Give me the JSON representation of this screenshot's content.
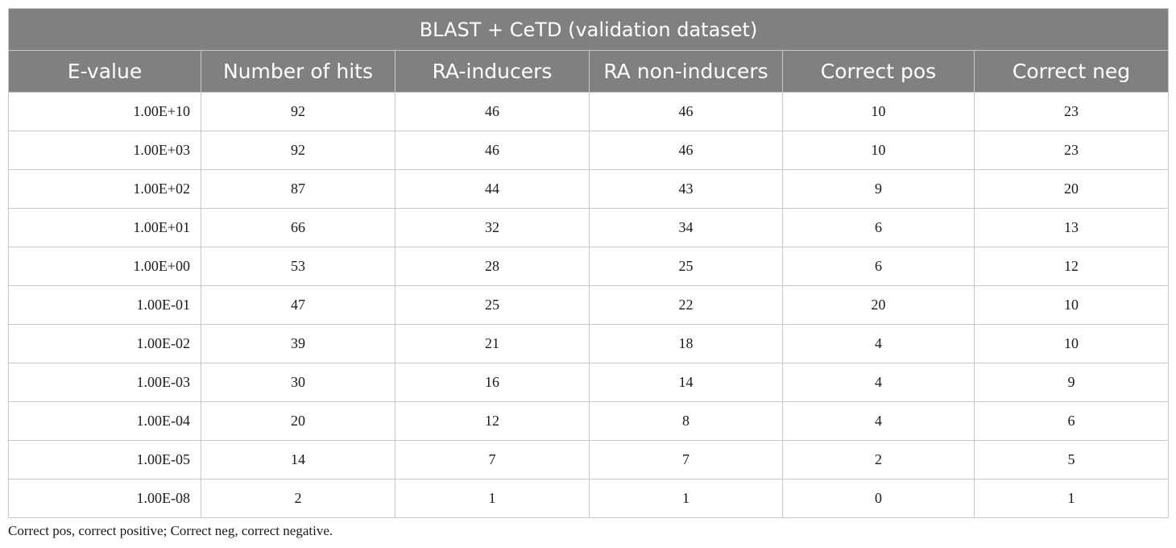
{
  "table": {
    "title": "BLAST + CeTD (validation dataset)",
    "headers": [
      "E-value",
      "Number of hits",
      "RA-inducers",
      "RA non-inducers",
      "Correct pos",
      "Correct neg"
    ],
    "rows": [
      [
        "1.00E+10",
        "92",
        "46",
        "46",
        "10",
        "23"
      ],
      [
        "1.00E+03",
        "92",
        "46",
        "46",
        "10",
        "23"
      ],
      [
        "1.00E+02",
        "87",
        "44",
        "43",
        "9",
        "20"
      ],
      [
        "1.00E+01",
        "66",
        "32",
        "34",
        "6",
        "13"
      ],
      [
        "1.00E+00",
        "53",
        "28",
        "25",
        "6",
        "12"
      ],
      [
        "1.00E-01",
        "47",
        "25",
        "22",
        "20",
        "10"
      ],
      [
        "1.00E-02",
        "39",
        "21",
        "18",
        "4",
        "10"
      ],
      [
        "1.00E-03",
        "30",
        "16",
        "14",
        "4",
        "9"
      ],
      [
        "1.00E-04",
        "20",
        "12",
        "8",
        "4",
        "6"
      ],
      [
        "1.00E-05",
        "14",
        "7",
        "7",
        "2",
        "5"
      ],
      [
        "1.00E-08",
        "2",
        "1",
        "1",
        "0",
        "1"
      ]
    ]
  },
  "footnote": "Correct pos, correct positive; Correct neg, correct negative."
}
